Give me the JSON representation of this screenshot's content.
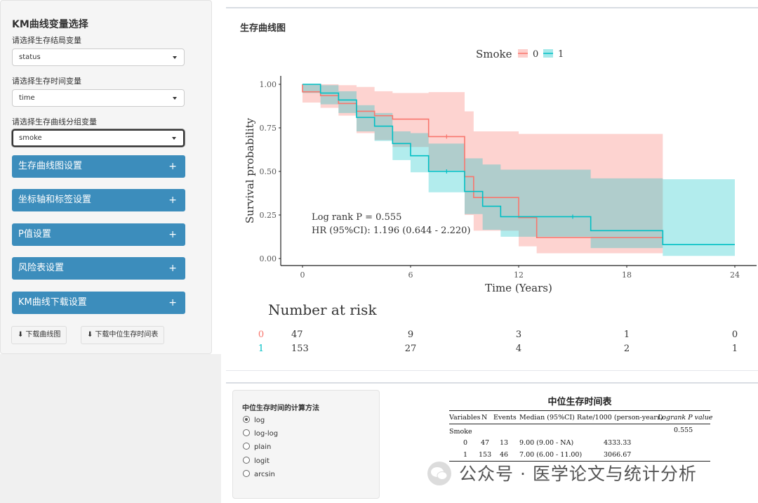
{
  "sidebar": {
    "title": "KM曲线变量选择",
    "outcome_label": "请选择生存结局变量",
    "outcome_value": "status",
    "time_label": "请选择生存时间变量",
    "time_value": "time",
    "group_label": "请选择生存曲线分组变量",
    "group_value": "smoke",
    "accordions": [
      "生存曲线图设置",
      "坐标轴和标签设置",
      "P值设置",
      "风险表设置",
      "KM曲线下载设置"
    ],
    "download_plot": "下载曲线图",
    "download_table": "下载中位生存时间表"
  },
  "panel": {
    "title": "生存曲线图"
  },
  "chart_data": {
    "type": "line",
    "title": "",
    "legend_title": "Smoke",
    "legend_position": "top",
    "xlabel": "Time (Years)",
    "ylabel": "Survival probability",
    "xlim": [
      0,
      24
    ],
    "ylim": [
      0,
      1
    ],
    "x_ticks": [
      "0",
      "6",
      "12",
      "18",
      "24"
    ],
    "y_ticks": [
      "0.00",
      "0.25",
      "0.50",
      "0.75",
      "1.00"
    ],
    "annotation_p": "Log rank P = 0.555",
    "annotation_hr": "HR (95%CI): 1.196 (0.644 - 2.220)",
    "series": [
      {
        "name": "0",
        "color": "#F8766D",
        "steps": [
          [
            0,
            1.0
          ],
          [
            0,
            0.957
          ],
          [
            1,
            0.935
          ],
          [
            2,
            0.89
          ],
          [
            3,
            0.845
          ],
          [
            4,
            0.82
          ],
          [
            5,
            0.8
          ],
          [
            7,
            0.7
          ],
          [
            9,
            0.47
          ],
          [
            9.5,
            0.35
          ],
          [
            12,
            0.235
          ],
          [
            13,
            0.12
          ],
          [
            20,
            0.12
          ]
        ],
        "ci_upper": [
          [
            0,
            1.0
          ],
          [
            1,
            1.0
          ],
          [
            2,
            0.995
          ],
          [
            3,
            0.985
          ],
          [
            4,
            0.96
          ],
          [
            5,
            0.95
          ],
          [
            7,
            0.955
          ],
          [
            9,
            0.845
          ],
          [
            9.5,
            0.73
          ],
          [
            12,
            0.715
          ],
          [
            13,
            0.715
          ],
          [
            20,
            0.715
          ]
        ],
        "ci_lower": [
          [
            0,
            0.895
          ],
          [
            1,
            0.865
          ],
          [
            2,
            0.82
          ],
          [
            3,
            0.72
          ],
          [
            4,
            0.68
          ],
          [
            5,
            0.64
          ],
          [
            7,
            0.505
          ],
          [
            9,
            0.25
          ],
          [
            9.5,
            0.16
          ],
          [
            12,
            0.07
          ],
          [
            13,
            0.03
          ],
          [
            20,
            0.03
          ]
        ],
        "censor_x": [
          8
        ]
      },
      {
        "name": "1",
        "color": "#00BFC4",
        "steps": [
          [
            0,
            1.0
          ],
          [
            1,
            0.95
          ],
          [
            2,
            0.91
          ],
          [
            3,
            0.81
          ],
          [
            4,
            0.76
          ],
          [
            5,
            0.66
          ],
          [
            6,
            0.59
          ],
          [
            7,
            0.5
          ],
          [
            9,
            0.385
          ],
          [
            10,
            0.3
          ],
          [
            11,
            0.24
          ],
          [
            16,
            0.16
          ],
          [
            20,
            0.08
          ],
          [
            24,
            0.08
          ]
        ],
        "ci_upper": [
          [
            0,
            1.0
          ],
          [
            1,
            0.995
          ],
          [
            2,
            0.96
          ],
          [
            3,
            0.88
          ],
          [
            4,
            0.835
          ],
          [
            5,
            0.73
          ],
          [
            6,
            0.72
          ],
          [
            7,
            0.66
          ],
          [
            9,
            0.575
          ],
          [
            10,
            0.54
          ],
          [
            11,
            0.51
          ],
          [
            16,
            0.46
          ],
          [
            20,
            0.455
          ],
          [
            24,
            0.455
          ]
        ],
        "ci_lower": [
          [
            0,
            0.95
          ],
          [
            1,
            0.885
          ],
          [
            2,
            0.835
          ],
          [
            3,
            0.73
          ],
          [
            4,
            0.675
          ],
          [
            5,
            0.565
          ],
          [
            6,
            0.495
          ],
          [
            7,
            0.38
          ],
          [
            9,
            0.255
          ],
          [
            10,
            0.165
          ],
          [
            11,
            0.125
          ],
          [
            16,
            0.06
          ],
          [
            20,
            0.015
          ],
          [
            24,
            0.015
          ]
        ],
        "censor_x": [
          8,
          15
        ]
      }
    ]
  },
  "risk_table": {
    "title": "Number at risk",
    "rows": [
      {
        "label": "0",
        "color": "#F8766D",
        "values": [
          "47",
          "9",
          "3",
          "1",
          "0"
        ]
      },
      {
        "label": "1",
        "color": "#00BFC4",
        "values": [
          "153",
          "27",
          "4",
          "2",
          "1"
        ]
      }
    ]
  },
  "method": {
    "title": "中位生存时间的计算方法",
    "options": [
      "log",
      "log-log",
      "plain",
      "logit",
      "arcsin"
    ],
    "selected": "log"
  },
  "median_table": {
    "title": "中位生存时间表",
    "headers": [
      "Variables",
      "N",
      "Events",
      "Median (95%CI)",
      "Rate/1000 (person-years)",
      "Logrank P value"
    ],
    "group_row": {
      "variable": "Smoke",
      "p": "0.555"
    },
    "rows": [
      {
        "variable": "0",
        "n": "47",
        "events": "13",
        "median": "9.00 (9.00 - NA)",
        "rate": "4333.33"
      },
      {
        "variable": "1",
        "n": "153",
        "events": "46",
        "median": "7.00 (6.00 - 11.00)",
        "rate": "3066.67"
      }
    ]
  },
  "watermark": "公众号 · 医学论文与统计分析"
}
